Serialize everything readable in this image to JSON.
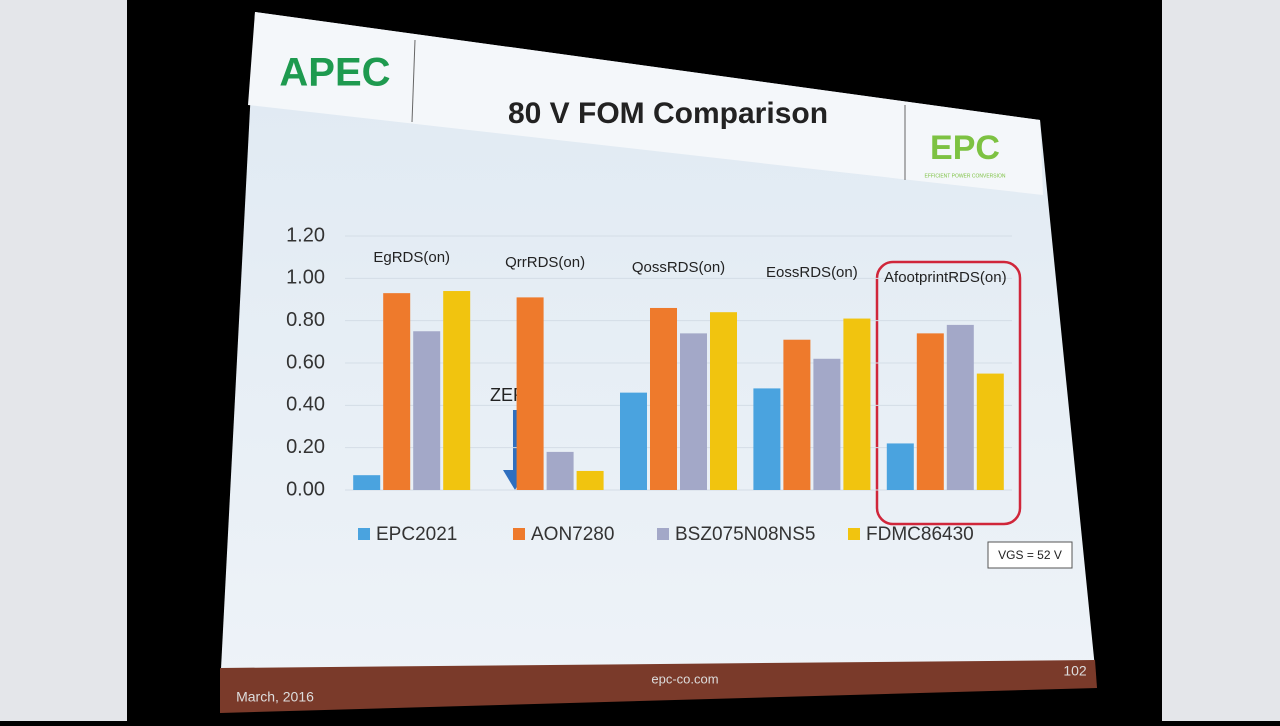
{
  "chart_data": {
    "type": "bar",
    "title": "80 V FOM Comparison",
    "categories": [
      "EgRDS(on)",
      "QrrRDS(on)",
      "QossRDS(on)",
      "EossRDS(on)",
      "AfootprintRDS(on)"
    ],
    "series": [
      {
        "name": "EPC2021",
        "color": "#4aa3df",
        "values": [
          0.07,
          0,
          0.46,
          0.48,
          0.22
        ]
      },
      {
        "name": "AON7280",
        "color": "#ee7a2c",
        "values": [
          0.93,
          0.91,
          0.86,
          0.71,
          0.74
        ]
      },
      {
        "name": "BSZ075N08NS5",
        "color": "#a3a8c8",
        "values": [
          0.75,
          0.18,
          0.74,
          0.62,
          0.78
        ]
      },
      {
        "name": "FDMC86430",
        "color": "#f1c40f",
        "values": [
          0.94,
          0.09,
          0.84,
          0.81,
          0.55
        ]
      }
    ],
    "ylim": [
      0,
      1.2
    ],
    "yticks": [
      {
        "value": 0,
        "label": "0.00"
      },
      {
        "value": 0.2,
        "label": "0.20"
      },
      {
        "value": 0.4,
        "label": "0.40"
      },
      {
        "value": 0.6,
        "label": "0.60"
      },
      {
        "value": 0.8,
        "label": "0.80"
      },
      {
        "value": 1,
        "label": "1.00"
      },
      {
        "value": 1.2,
        "label": "1.20"
      }
    ],
    "grid": true,
    "annotation": "ZERO",
    "condition": "VGS = 52 V"
  },
  "slide": {
    "left_logo": "APEC",
    "right_logo": "EPC",
    "right_logo_tagline": "EFFICIENT POWER CONVERSION",
    "date": "March, 2016",
    "website": "epc-co.com",
    "page": "102"
  }
}
